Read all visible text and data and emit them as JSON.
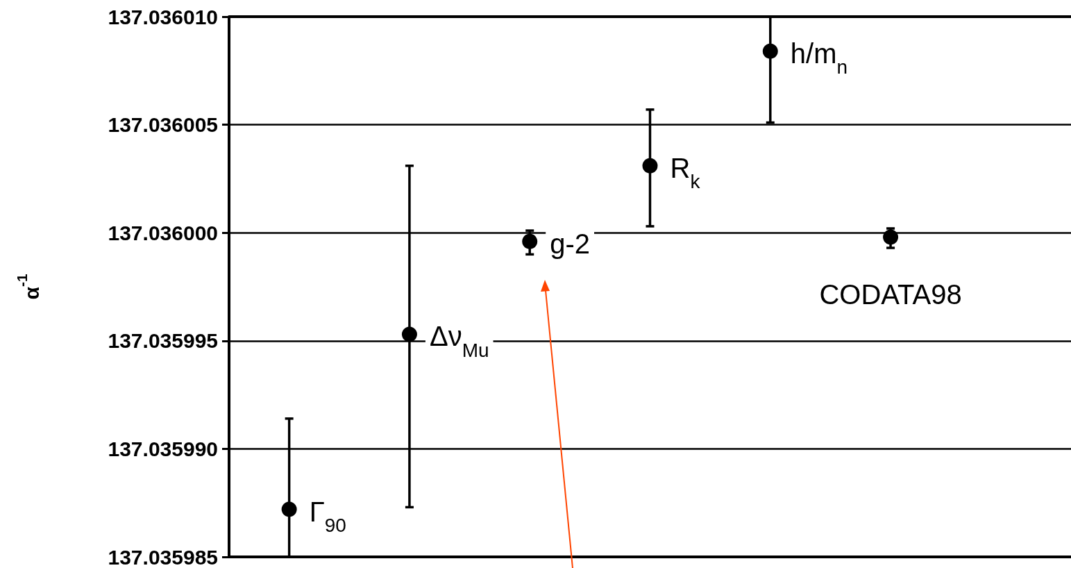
{
  "chart_data": {
    "type": "scatter",
    "ylabel": "α$^{-1}$",
    "categories": [
      null,
      null,
      null,
      null,
      null,
      null,
      null
    ],
    "series": [
      {
        "name": "Γ$_{90}$",
        "color": "#000000",
        "values": [
          137.0359872,
          null,
          null,
          null,
          null,
          null,
          null
        ],
        "errors": [
          [
            137.035985,
            137.0359914
          ],
          null,
          null,
          null,
          null,
          null,
          null
        ]
      },
      {
        "name": "Δν$_{Mu}$",
        "color": "#000000",
        "values": [
          null,
          137.0359953,
          null,
          null,
          null,
          null,
          null
        ],
        "errors": [
          null,
          [
            137.0359873,
            137.0360031
          ],
          null,
          null,
          null,
          null,
          null
        ]
      },
      {
        "name": "g-2",
        "color": "#000000",
        "values": [
          null,
          null,
          137.0359996,
          null,
          null,
          null,
          null
        ],
        "errors": [
          null,
          null,
          [
            137.035999,
            137.0360001
          ],
          null,
          null,
          null,
          null
        ]
      },
      {
        "name": "R$_{k}$",
        "color": "#000000",
        "values": [
          null,
          null,
          null,
          137.0360031,
          null,
          null,
          null
        ],
        "errors": [
          null,
          null,
          null,
          [
            137.0360003,
            137.0360057
          ],
          null,
          null,
          null
        ]
      },
      {
        "name": "h/m$_{n}$",
        "color": "#000000",
        "values": [
          null,
          null,
          null,
          null,
          137.0360084,
          null,
          null
        ],
        "errors": [
          null,
          null,
          null,
          null,
          [
            137.0360051,
            137.03601
          ],
          null,
          null
        ]
      },
      {
        "name": "CODATA98",
        "color": "#000000",
        "values": [
          null,
          null,
          null,
          null,
          null,
          137.0359998,
          null
        ],
        "errors": [
          null,
          null,
          null,
          null,
          null,
          [
            137.0359993,
            137.0360002
          ],
          null
        ]
      }
    ],
    "ylim": [
      137.035985,
      137.03601
    ],
    "yticks": [
      {
        "value": 137.035985,
        "label": "137.035985"
      },
      {
        "value": 137.03599,
        "label": "137.035990"
      },
      {
        "value": 137.035995,
        "label": "137.035995"
      },
      {
        "value": 137.036,
        "label": "137.036000"
      },
      {
        "value": 137.036005,
        "label": "137.036005"
      },
      {
        "value": 137.03601,
        "label": "137.036010"
      }
    ],
    "grid": "y",
    "legend": false,
    "marker": "circle"
  }
}
